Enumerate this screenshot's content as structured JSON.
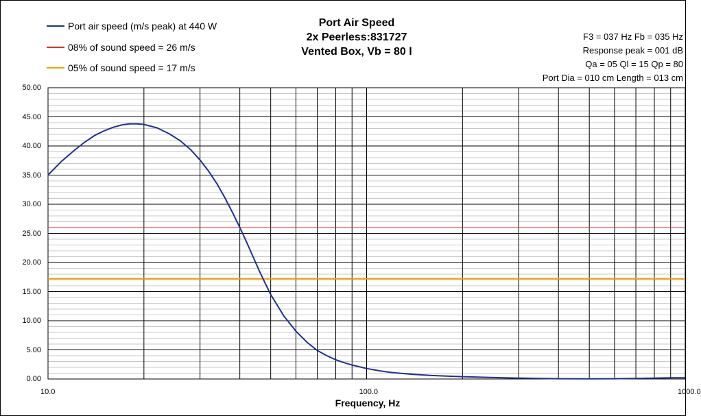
{
  "legend": [
    {
      "label": "Port air speed (m/s peak) at 440 W",
      "color": "#1f2f8f"
    },
    {
      "label": "08% of sound speed = 26 m/s",
      "color": "#e03020"
    },
    {
      "label": "05% of sound speed = 17 m/s",
      "color": "#f5a300"
    }
  ],
  "title_lines": [
    "Port Air Speed",
    "2x Peerless:831727",
    "Vented Box, Vb = 80 l"
  ],
  "info_lines": [
    "F3 = 037 Hz  Fb = 035 Hz",
    "Response peak = 001 dB",
    "Qa = 05  Ql = 15  Qp = 80",
    "Port Dia = 010 cm  Length = 013 cm"
  ],
  "chart_data": {
    "type": "line",
    "title": "Port Air Speed",
    "xlabel": "Frequency, Hz",
    "ylabel": "",
    "xscale": "log",
    "xlim": [
      10,
      1000
    ],
    "ylim": [
      0,
      50
    ],
    "grid": true,
    "legend_position": "top-left",
    "x_tick_labels": [
      "10.0",
      "100.0",
      "1000.0"
    ],
    "y_tick_labels": [
      "50.00",
      "45.00",
      "40.00",
      "35.00",
      "30.00",
      "25.00",
      "20.00",
      "15.00",
      "10.00",
      "5.00",
      "0.00"
    ],
    "series": [
      {
        "name": "Port air speed (m/s peak) at 440 W",
        "color": "#1f2f8f",
        "x": [
          10,
          11,
          12,
          13,
          14,
          15,
          16,
          17,
          18,
          19,
          20,
          22,
          24,
          26,
          28,
          30,
          32,
          34,
          36,
          38,
          40,
          42,
          44,
          46,
          48,
          50,
          55,
          60,
          65,
          70,
          75,
          80,
          85,
          90,
          100,
          110,
          120,
          140,
          160,
          200,
          250,
          300,
          400,
          500,
          600,
          700,
          800,
          900,
          1000
        ],
        "y": [
          35.0,
          37.3,
          39.1,
          40.6,
          41.8,
          42.6,
          43.2,
          43.6,
          43.8,
          43.8,
          43.7,
          43.1,
          42.1,
          40.9,
          39.4,
          37.6,
          35.6,
          33.4,
          31.0,
          28.5,
          26.0,
          23.5,
          21.0,
          18.6,
          16.5,
          14.5,
          10.8,
          8.2,
          6.3,
          4.9,
          4.0,
          3.3,
          2.8,
          2.4,
          1.8,
          1.4,
          1.1,
          0.8,
          0.6,
          0.4,
          0.25,
          0.15,
          0.05,
          0.02,
          0.05,
          0.1,
          0.15,
          0.2,
          0.2
        ]
      },
      {
        "name": "08% of sound speed = 26 m/s",
        "color": "#e03020",
        "x": [
          10,
          1000
        ],
        "y": [
          26,
          26
        ]
      },
      {
        "name": "05% of sound speed = 17 m/s",
        "color": "#f5a300",
        "x": [
          10,
          1000
        ],
        "y": [
          17.2,
          17.2
        ]
      }
    ]
  }
}
